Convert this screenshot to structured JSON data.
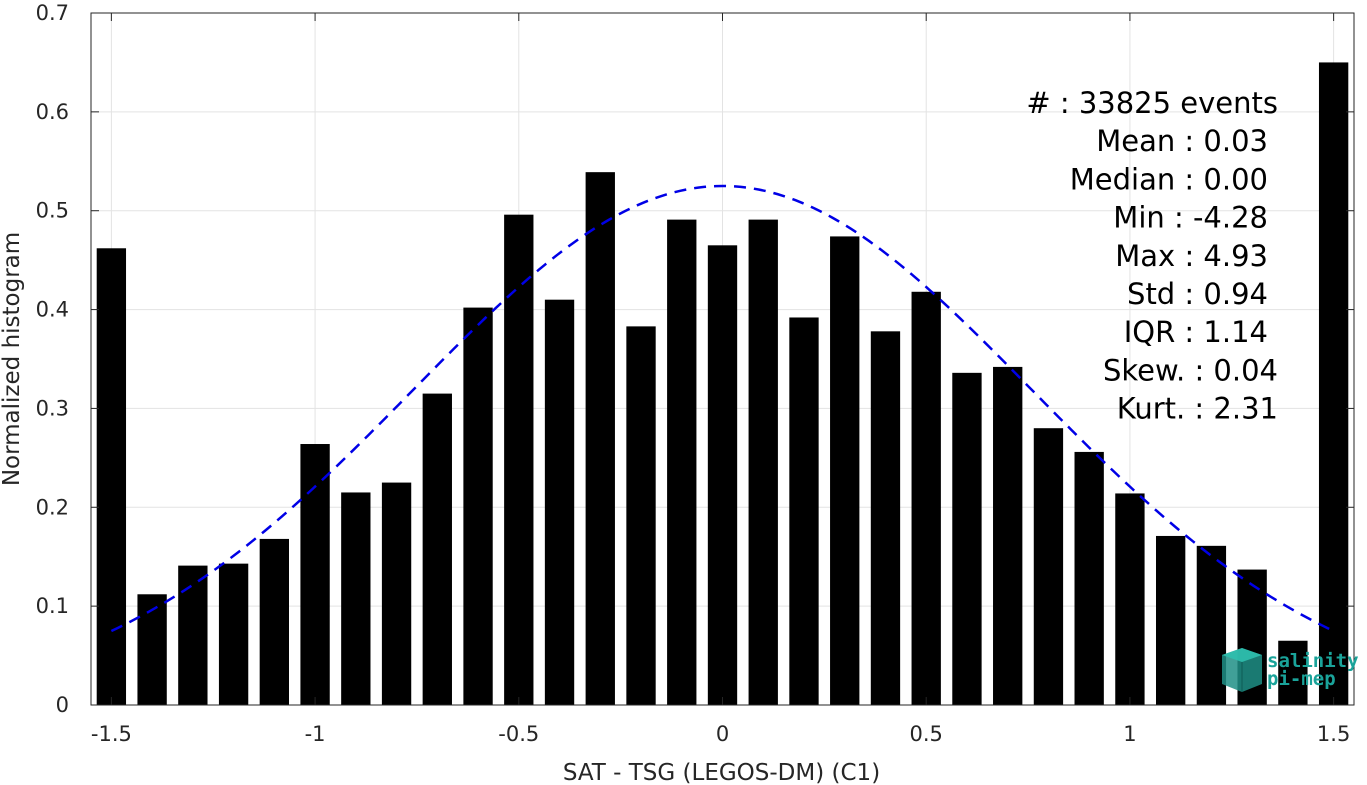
{
  "chart_data": {
    "type": "bar",
    "xlabel": "SAT - TSG (LEGOS-DM) (C1)",
    "ylabel": "Normalized histogram",
    "xlim": [
      -1.55,
      1.55
    ],
    "ylim": [
      0,
      0.7
    ],
    "xticks": [
      -1.5,
      -1,
      -0.5,
      0,
      0.5,
      1,
      1.5
    ],
    "xtick_labels": [
      "-1.5",
      "-1",
      "-0.5",
      "0",
      "0.5",
      "1",
      "1.5"
    ],
    "yticks": [
      0,
      0.1,
      0.2,
      0.3,
      0.4,
      0.5,
      0.6,
      0.7
    ],
    "ytick_labels": [
      "0",
      "0.1",
      "0.2",
      "0.3",
      "0.4",
      "0.5",
      "0.6",
      "0.7"
    ],
    "grid": true,
    "x": [
      -1.5,
      -1.4,
      -1.3,
      -1.2,
      -1.1,
      -1.0,
      -0.9,
      -0.8,
      -0.7,
      -0.6,
      -0.5,
      -0.4,
      -0.3,
      -0.2,
      -0.1,
      0.0,
      0.1,
      0.2,
      0.3,
      0.4,
      0.5,
      0.6,
      0.7,
      0.8,
      0.9,
      1.0,
      1.1,
      1.2,
      1.3,
      1.4,
      1.5
    ],
    "values": [
      0.462,
      0.112,
      0.141,
      0.143,
      0.168,
      0.264,
      0.215,
      0.225,
      0.315,
      0.402,
      0.496,
      0.41,
      0.539,
      0.383,
      0.491,
      0.465,
      0.491,
      0.392,
      0.474,
      0.378,
      0.418,
      0.336,
      0.342,
      0.28,
      0.256,
      0.214,
      0.171,
      0.161,
      0.137,
      0.065,
      0.65
    ],
    "bar_color": "#000000",
    "fit": {
      "type": "gaussian",
      "mean": 0.0,
      "std": 0.76,
      "peak": 0.525,
      "x_range": [
        -1.5,
        1.5
      ],
      "color": "#0000e6",
      "style": "dashed"
    },
    "annotations": [
      "#  : 33825 events",
      "Mean : 0.03",
      "Median : 0.00",
      "Min : -4.28",
      "Max : 4.93",
      "Std : 0.94",
      "IQR : 1.14",
      "Skew. : 0.04",
      "Kurt. : 2.31"
    ]
  },
  "logo": {
    "line1": "salinity",
    "line2": "pi-mep",
    "color": "#1aa39a"
  }
}
